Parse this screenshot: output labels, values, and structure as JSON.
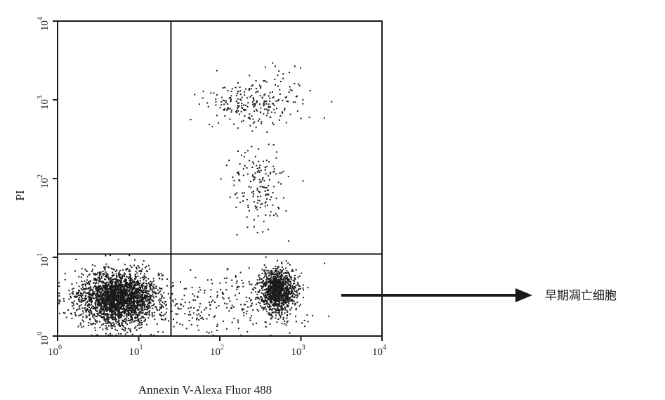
{
  "chart_data": {
    "type": "scatter",
    "xlabel": "Annexin V-Alexa Fluor 488",
    "ylabel": "PI",
    "x_scale": "log",
    "y_scale": "log",
    "xlim": [
      1,
      10000
    ],
    "ylim": [
      1,
      10000
    ],
    "x_ticks": [
      {
        "base": "10",
        "exp": "0",
        "value": 1
      },
      {
        "base": "10",
        "exp": "1",
        "value": 10
      },
      {
        "base": "10",
        "exp": "2",
        "value": 100
      },
      {
        "base": "10",
        "exp": "3",
        "value": 1000
      },
      {
        "base": "10",
        "exp": "4",
        "value": 10000
      }
    ],
    "y_ticks": [
      {
        "base": "10",
        "exp": "0",
        "value": 1
      },
      {
        "base": "10",
        "exp": "1",
        "value": 10
      },
      {
        "base": "10",
        "exp": "2",
        "value": 100
      },
      {
        "base": "10",
        "exp": "3",
        "value": 1000
      },
      {
        "base": "10",
        "exp": "4",
        "value": 10000
      }
    ],
    "gates": {
      "x": 25,
      "y": 11
    },
    "grid": false,
    "point_color": "#1a1a1a",
    "annotation": {
      "text": "早期凋亡细胞",
      "points_to": "lower-right quadrant"
    },
    "populations": [
      {
        "region": "lower-left",
        "center": [
          5.5,
          3.0
        ],
        "spread_log": [
          0.25,
          0.17
        ],
        "count": 2600
      },
      {
        "region": "lower-right",
        "center": [
          520,
          3.8
        ],
        "spread_log": [
          0.11,
          0.14
        ],
        "count": 1050
      },
      {
        "region": "lower-middle",
        "center": [
          120,
          2.5
        ],
        "spread_log": [
          0.45,
          0.2
        ],
        "count": 240
      },
      {
        "region": "upper-right",
        "center": [
          250,
          900
        ],
        "spread_log": [
          0.3,
          0.14
        ],
        "count": 230
      },
      {
        "region": "upper-right",
        "center": [
          300,
          80
        ],
        "spread_log": [
          0.16,
          0.25
        ],
        "count": 170
      },
      {
        "region": "upper-right-tail",
        "center": [
          620,
          1800
        ],
        "spread_log": [
          0.1,
          0.12
        ],
        "count": 20
      }
    ]
  }
}
